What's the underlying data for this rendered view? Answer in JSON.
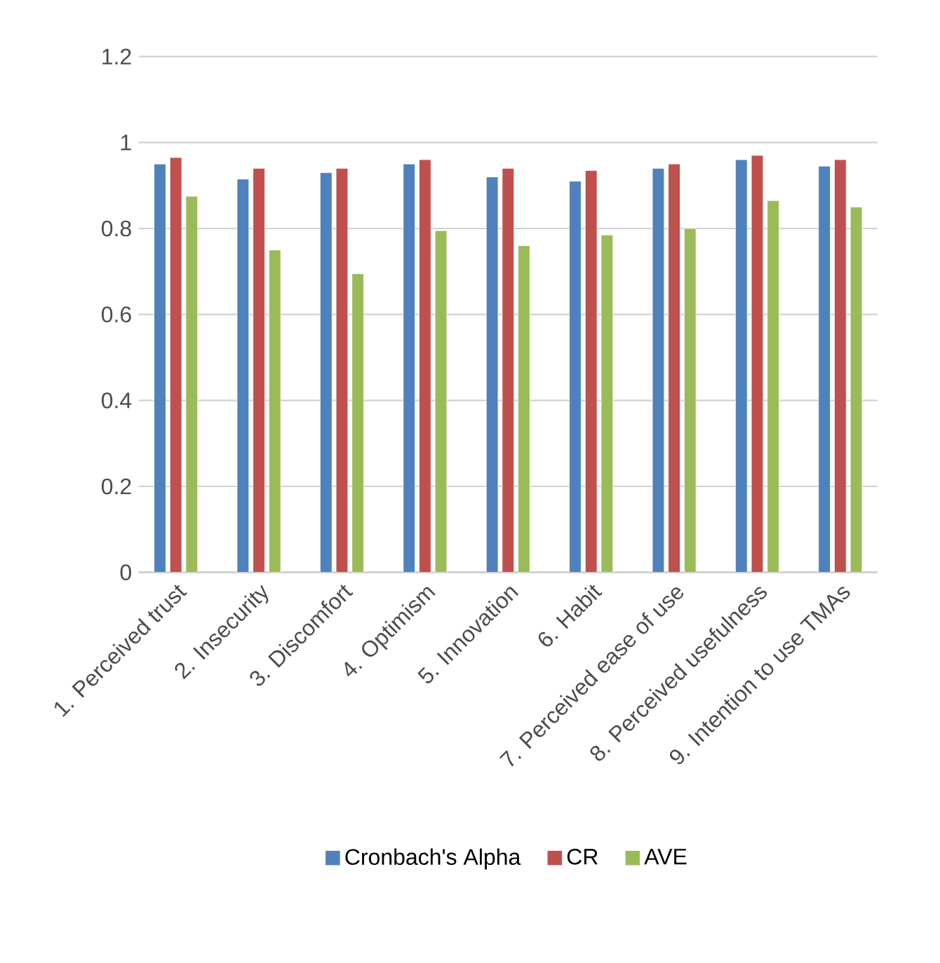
{
  "chart_data": {
    "type": "bar",
    "categories": [
      "1. Perceived trust",
      "2. Insecurity",
      "3. Discomfort",
      "4. Optimism",
      "5. Innovation",
      "6. Habit",
      "7. Perceived ease of use",
      "8. Perceived usefulness",
      "9. Intention to use TMAs"
    ],
    "series": [
      {
        "name": "Cronbach's Alpha",
        "color": "#4f81bd",
        "values": [
          0.95,
          0.915,
          0.93,
          0.95,
          0.92,
          0.91,
          0.94,
          0.96,
          0.945
        ]
      },
      {
        "name": "CR",
        "color": "#c0504d",
        "values": [
          0.965,
          0.94,
          0.94,
          0.96,
          0.94,
          0.935,
          0.95,
          0.97,
          0.96
        ]
      },
      {
        "name": "AVE",
        "color": "#9bbb59",
        "values": [
          0.875,
          0.75,
          0.695,
          0.795,
          0.76,
          0.785,
          0.8,
          0.865,
          0.85
        ]
      }
    ],
    "ylim": [
      0,
      1.2
    ],
    "yticks": [
      0,
      0.2,
      0.4,
      0.6,
      0.8,
      1,
      1.2
    ],
    "grid": "y",
    "legend": "bottom"
  }
}
